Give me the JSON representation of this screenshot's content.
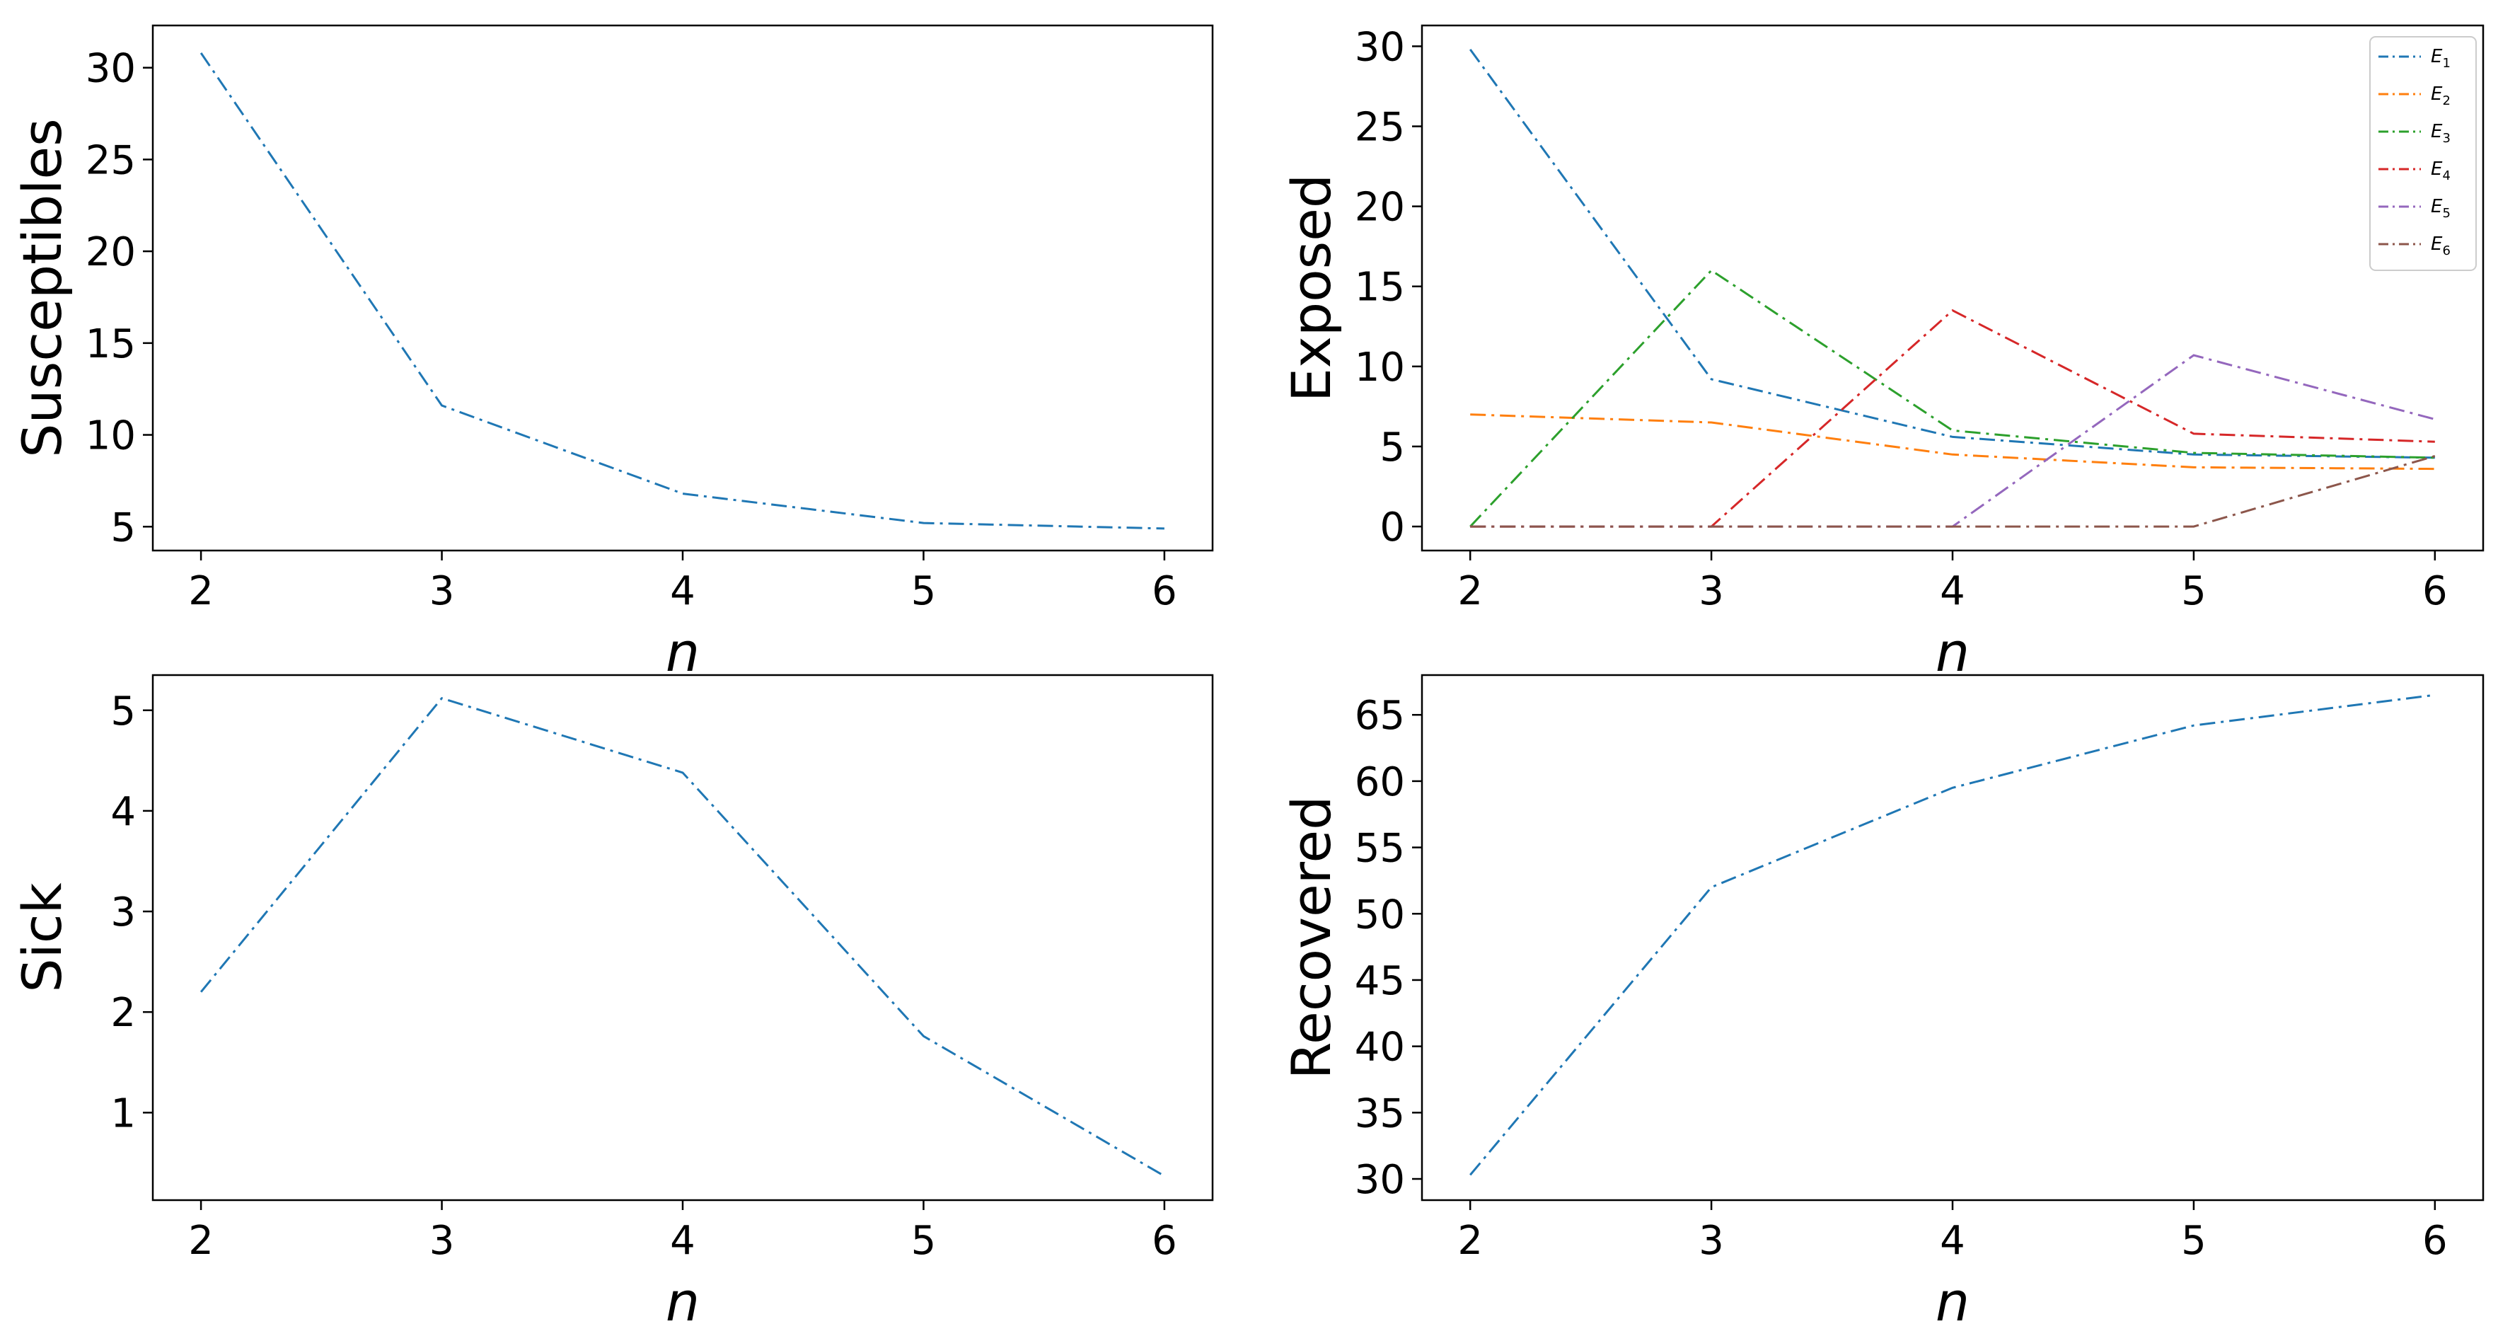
{
  "chart_data": [
    {
      "type": "line",
      "x": [
        2,
        3,
        4,
        5,
        6
      ],
      "xlabel": "n",
      "ylabel": "Susceptibles",
      "xlim": [
        1.8,
        6.2
      ],
      "ylim": [
        3.7,
        32.3
      ],
      "xticks": [
        "2",
        "3",
        "4",
        "5",
        "6"
      ],
      "yticks": [
        "5",
        "10",
        "15",
        "20",
        "25",
        "30"
      ],
      "series": [
        {
          "name": "",
          "color": "#1f77b4",
          "values": [
            30.8,
            11.6,
            6.8,
            5.2,
            4.9
          ]
        }
      ]
    },
    {
      "type": "line",
      "x": [
        2,
        3,
        4,
        5,
        6
      ],
      "xlabel": "n",
      "ylabel": "Exposed",
      "xlim": [
        1.8,
        6.2
      ],
      "ylim": [
        -1.5,
        31.3
      ],
      "xticks": [
        "2",
        "3",
        "4",
        "5",
        "6"
      ],
      "yticks": [
        "0",
        "5",
        "10",
        "15",
        "20",
        "25",
        "30"
      ],
      "legend": "top-right",
      "series": [
        {
          "name": "E",
          "sub": "1",
          "color": "#1f77b4",
          "values": [
            29.8,
            9.2,
            5.6,
            4.5,
            4.3
          ]
        },
        {
          "name": "E",
          "sub": "2",
          "color": "#ff7f0e",
          "values": [
            7.0,
            6.5,
            4.5,
            3.7,
            3.6
          ]
        },
        {
          "name": "E",
          "sub": "3",
          "color": "#2ca02c",
          "values": [
            0,
            16.0,
            6.0,
            4.6,
            4.3
          ]
        },
        {
          "name": "E",
          "sub": "4",
          "color": "#d62728",
          "values": [
            0,
            0,
            13.5,
            5.8,
            5.3
          ]
        },
        {
          "name": "E",
          "sub": "5",
          "color": "#9467bd",
          "values": [
            0,
            0,
            0,
            10.7,
            6.7
          ]
        },
        {
          "name": "E",
          "sub": "6",
          "color": "#8c564b",
          "values": [
            0,
            0,
            0,
            0,
            4.4
          ]
        }
      ]
    },
    {
      "type": "line",
      "x": [
        2,
        3,
        4,
        5,
        6
      ],
      "xlabel": "n",
      "ylabel": "Sick",
      "xlim": [
        1.8,
        6.2
      ],
      "ylim": [
        0.13,
        5.35
      ],
      "xticks": [
        "2",
        "3",
        "4",
        "5",
        "6"
      ],
      "yticks": [
        "1",
        "2",
        "3",
        "4",
        "5"
      ],
      "series": [
        {
          "name": "",
          "color": "#1f77b4",
          "values": [
            2.2,
            5.12,
            4.38,
            1.76,
            0.37
          ]
        }
      ]
    },
    {
      "type": "line",
      "x": [
        2,
        3,
        4,
        5,
        6
      ],
      "xlabel": "n",
      "ylabel": "Recovered",
      "xlim": [
        1.8,
        6.2
      ],
      "ylim": [
        28.4,
        68.0
      ],
      "xticks": [
        "2",
        "3",
        "4",
        "5",
        "6"
      ],
      "yticks": [
        "30",
        "35",
        "40",
        "45",
        "50",
        "55",
        "60",
        "65"
      ],
      "series": [
        {
          "name": "",
          "color": "#1f77b4",
          "values": [
            30.3,
            52.0,
            59.5,
            64.2,
            66.5
          ]
        }
      ]
    }
  ]
}
